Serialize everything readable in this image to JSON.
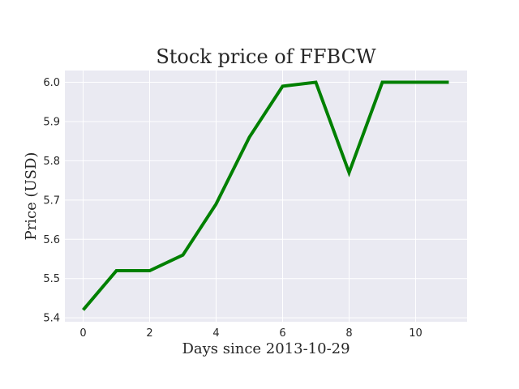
{
  "chart_data": {
    "type": "line",
    "title": "Stock price of FFBCW",
    "xlabel": "Days since 2013-10-29",
    "ylabel": "Price (USD)",
    "x": [
      0,
      1,
      2,
      3,
      4,
      5,
      6,
      7,
      8,
      9,
      10,
      11
    ],
    "series": [
      {
        "values": [
          5.42,
          5.52,
          5.52,
          5.56,
          5.69,
          5.86,
          5.99,
          6.0,
          5.77,
          6.0,
          6.0,
          6.0
        ],
        "color": "#008000"
      }
    ],
    "xlim": [
      -0.55,
      11.55
    ],
    "ylim": [
      5.39,
      6.03
    ],
    "xticks": [
      0,
      2,
      4,
      6,
      8,
      10
    ],
    "xtick_labels": [
      "0",
      "2",
      "4",
      "6",
      "8",
      "10"
    ],
    "yticks": [
      5.4,
      5.5,
      5.6,
      5.7,
      5.8,
      5.9,
      6.0
    ],
    "ytick_labels": [
      "5.4",
      "5.5",
      "5.6",
      "5.7",
      "5.8",
      "5.9",
      "6.0"
    ],
    "grid": true,
    "legend": "none",
    "background_color": "#eaeaf2",
    "grid_color": "#ffffff"
  }
}
